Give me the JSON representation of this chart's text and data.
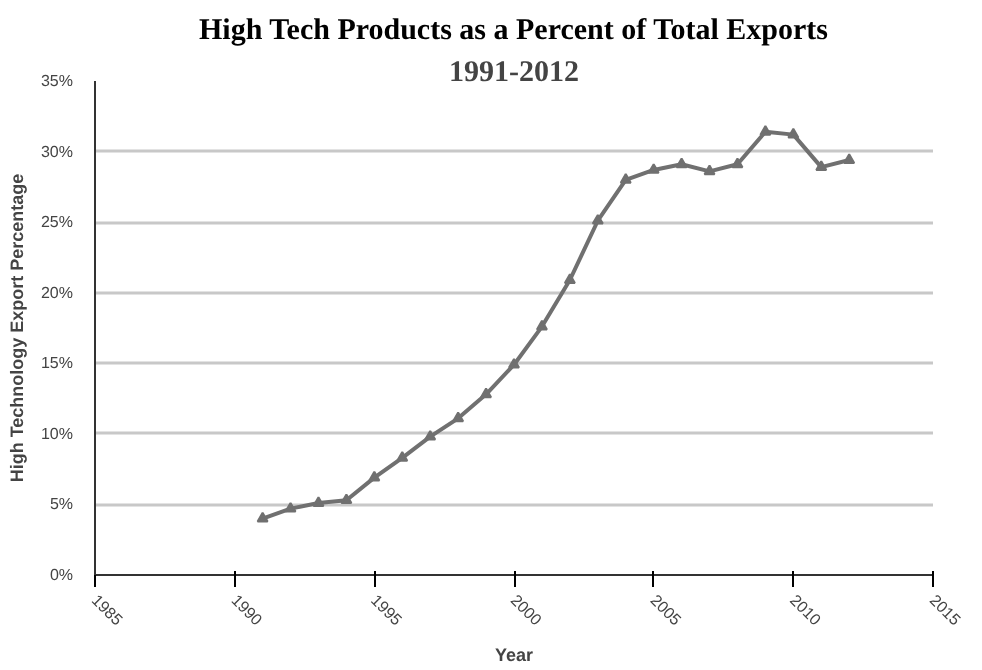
{
  "chart_data": {
    "type": "line",
    "title": "High Tech Products as a Percent of Total Exports",
    "subtitle": "1991-2012",
    "xlabel": "Year",
    "ylabel": "High Technology Export Percentage",
    "x": [
      1991,
      1992,
      1993,
      1994,
      1995,
      1996,
      1997,
      1998,
      1999,
      2000,
      2001,
      2002,
      2003,
      2004,
      2005,
      2006,
      2007,
      2008,
      2009,
      2010,
      2011,
      2012
    ],
    "series": [
      {
        "color": "#707070",
        "values": [
          4.0,
          4.7,
          5.1,
          5.3,
          6.9,
          8.3,
          9.8,
          11.1,
          12.8,
          14.9,
          17.6,
          20.9,
          25.1,
          28.0,
          28.7,
          29.1,
          28.6,
          29.1,
          31.4,
          31.2,
          28.9,
          29.4
        ]
      }
    ],
    "xlim": [
      1985,
      2015
    ],
    "xticks": [
      1985,
      1990,
      1995,
      2000,
      2005,
      2010,
      2015
    ],
    "ylim": [
      0,
      35
    ],
    "yticks": [
      {
        "value": 0,
        "label": "0%"
      },
      {
        "value": 5,
        "label": "5%"
      },
      {
        "value": 10,
        "label": "10%"
      },
      {
        "value": 15,
        "label": "15%"
      },
      {
        "value": 20,
        "label": "20%"
      },
      {
        "value": 25,
        "label": "25%"
      },
      {
        "value": 30,
        "label": "30%"
      },
      {
        "value": 35,
        "label": "35%"
      }
    ],
    "grid": "y",
    "marker": "triangle",
    "line_style": "solid"
  }
}
